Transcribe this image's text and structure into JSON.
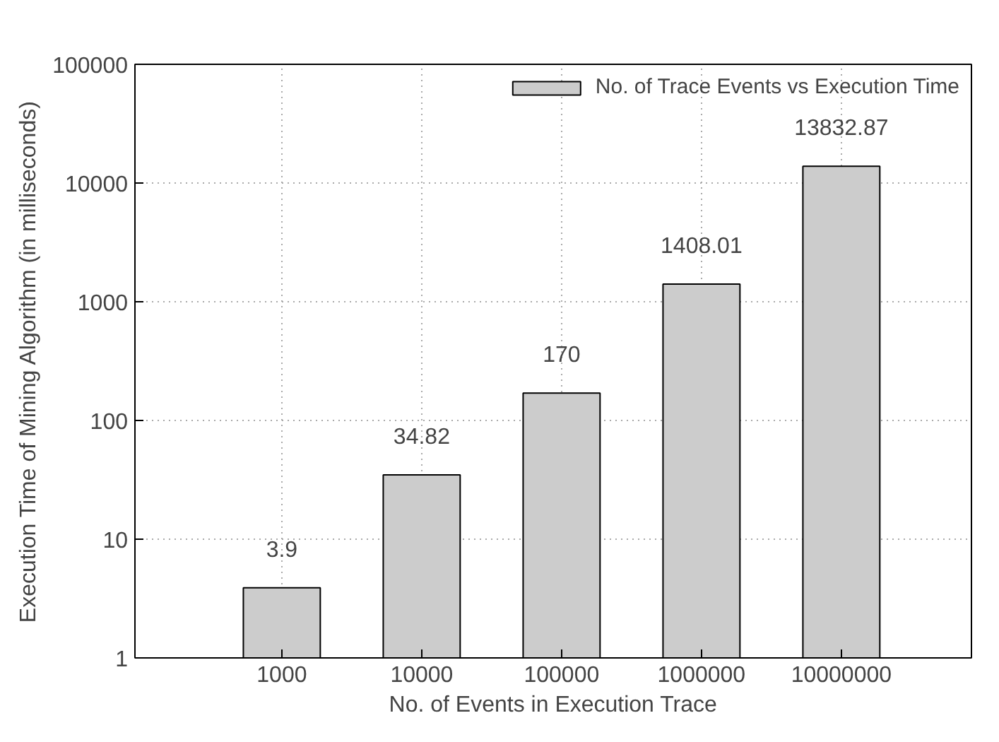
{
  "chart_data": {
    "type": "bar",
    "xlabel": "No. of Events in Execution Trace",
    "ylabel": "Execution Time of Mining Algorithm (in milliseconds)",
    "categories": [
      "1000",
      "10000",
      "100000",
      "1000000",
      "10000000"
    ],
    "series": [
      {
        "name": "No. of Trace Events vs Execution Time",
        "color": "#cccccc",
        "values": [
          3.9,
          34.82,
          170,
          1408.01,
          13832.87
        ]
      }
    ],
    "ylim": [
      1,
      100000
    ],
    "yticks": [
      1,
      10,
      100,
      1000,
      10000,
      100000
    ],
    "log": true,
    "grid": true,
    "legend": "top right",
    "data_labels": true
  }
}
